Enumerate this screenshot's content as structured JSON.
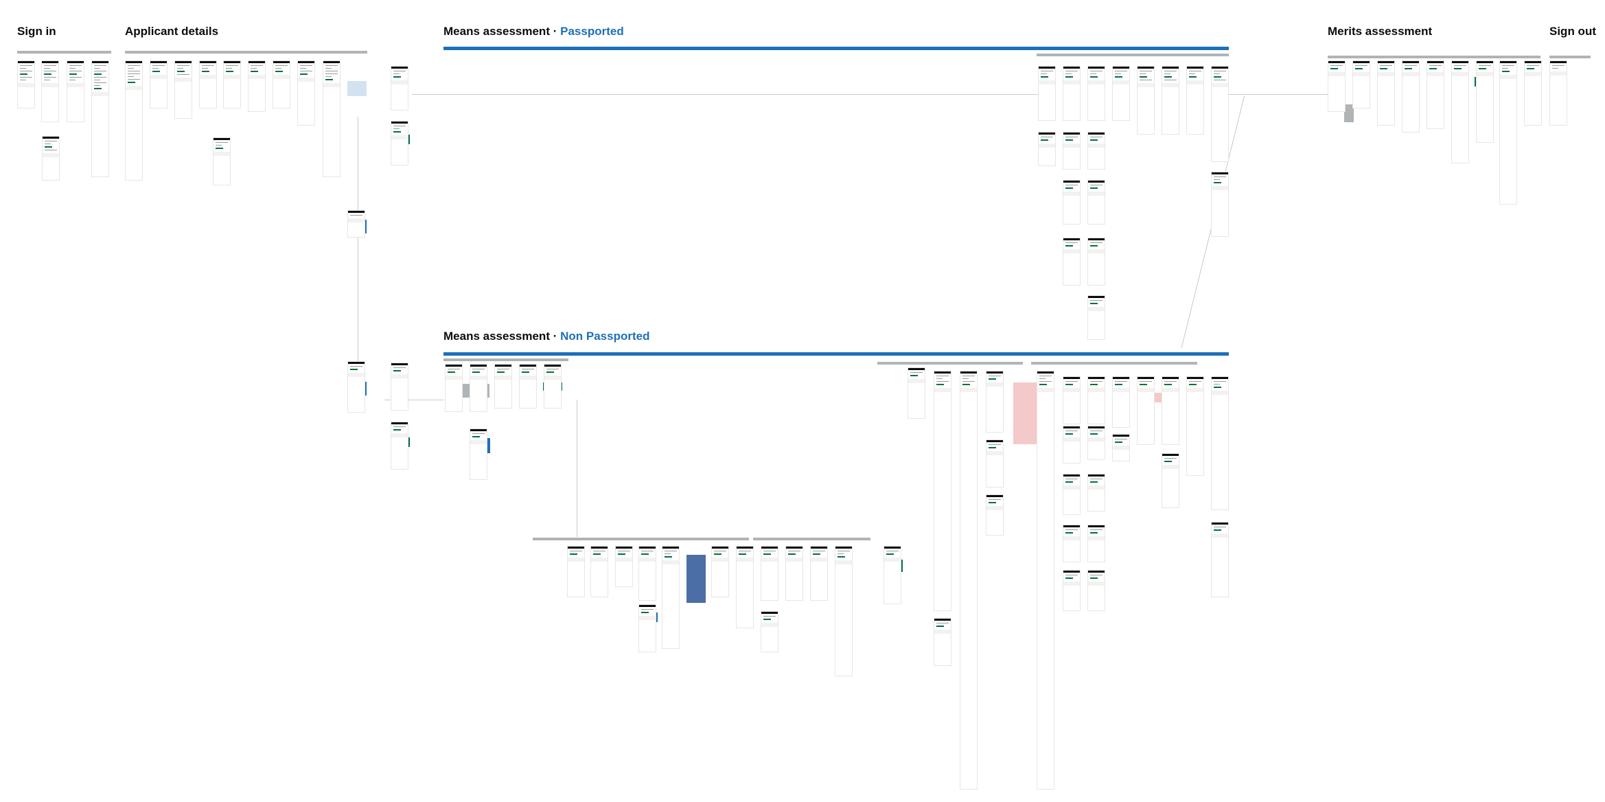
{
  "sections": {
    "sign_in": "Sign in",
    "applicant_details": "Applicant details",
    "means_passported_main": "Means assessment",
    "means_passported_accent": "Passported",
    "means_non_passported_main": "Means assessment",
    "means_non_passported_accent": "Non Passported",
    "separator": "·",
    "merits": "Merits assessment",
    "sign_out": "Sign out"
  },
  "colors": {
    "accent": "#1d70b8",
    "screen_header": "#0b0c0c",
    "primary_button": "#00703c",
    "band": "#b1b4b6",
    "error_highlight": "#f4c9c9"
  }
}
